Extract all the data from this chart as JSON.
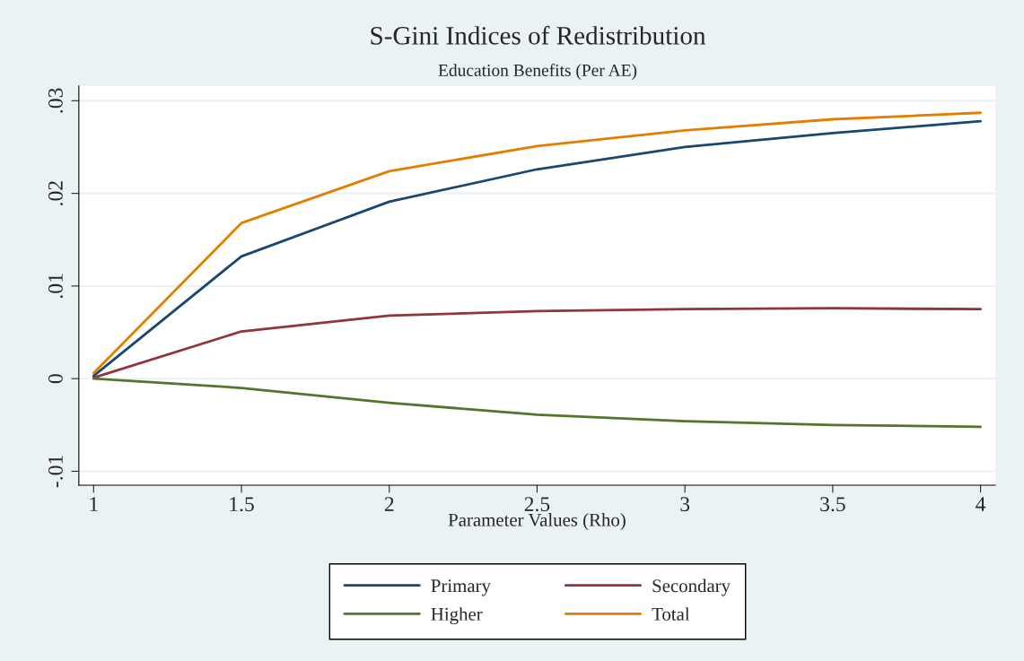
{
  "chart_data": {
    "type": "line",
    "title": "S-Gini Indices of Redistribution",
    "subtitle": "Education Benefits (Per AE)",
    "xlabel": "Parameter Values (Rho)",
    "x": [
      1,
      1.5,
      2,
      2.5,
      3,
      3.5,
      4
    ],
    "series": [
      {
        "name": "Primary",
        "color": "#1a476f",
        "values": [
          0.0003,
          0.0132,
          0.0191,
          0.0226,
          0.025,
          0.0265,
          0.0278
        ]
      },
      {
        "name": "Secondary",
        "color": "#90353b",
        "values": [
          0.0001,
          0.0051,
          0.0068,
          0.0073,
          0.0075,
          0.0076,
          0.0075
        ]
      },
      {
        "name": "Higher",
        "color": "#55752f",
        "values": [
          0,
          -0.001,
          -0.0026,
          -0.0039,
          -0.0046,
          -0.005,
          -0.0052
        ]
      },
      {
        "name": "Total",
        "color": "#e37e00",
        "values": [
          0.0006,
          0.0168,
          0.0224,
          0.0251,
          0.0268,
          0.028,
          0.0287
        ]
      }
    ],
    "xlim": [
      0.95,
      4.05
    ],
    "xticks": [
      1,
      1.5,
      2,
      2.5,
      3,
      3.5,
      4
    ],
    "ylim": [
      -0.0115,
      0.0316
    ],
    "yticks": [
      {
        "value": -0.01,
        "label": "-.01"
      },
      {
        "value": 0,
        "label": "0"
      },
      {
        "value": 0.01,
        "label": ".01"
      },
      {
        "value": 0.02,
        "label": ".02"
      },
      {
        "value": 0.03,
        "label": ".03"
      }
    ],
    "grid": "y",
    "legend": "bottom",
    "marker": "none",
    "line_style": "solid"
  }
}
